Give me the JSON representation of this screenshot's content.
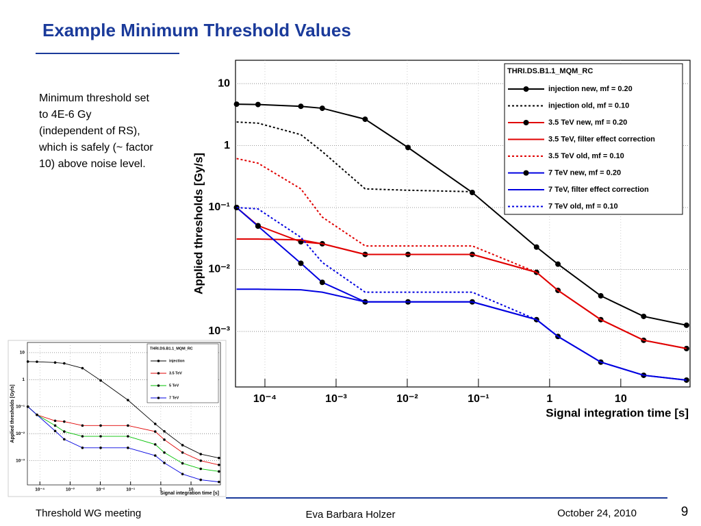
{
  "header": {
    "title": "Example Minimum Threshold Values"
  },
  "note": "Minimum threshold set to 4E-6 Gy (independent of RS), which is safely (~ factor 10) above noise level.",
  "footer": {
    "left": "Threshold WG meeting",
    "center": "Eva Barbara Holzer",
    "right": "October 24, 2010",
    "page": "9"
  },
  "chart_data": [
    {
      "type": "line",
      "legend_title": "THRI.DS.B1.1_MQM_RC",
      "xlabel": "Signal integration time [s]",
      "ylabel": "Applied thresholds [Gy/s]",
      "x": [
        4e-05,
        8e-05,
        0.00032,
        0.00064,
        0.00256,
        0.01024,
        0.08192,
        0.655,
        1.31,
        5.24,
        20.97,
        83.89
      ],
      "xlog": true,
      "ylog": true,
      "grid": true,
      "xlim": [
        3.86e-05,
        94
      ],
      "ylim": [
        0.000127,
        23.8
      ],
      "xticks": [
        {
          "value": 0.0001,
          "label": "10⁻⁴"
        },
        {
          "value": 0.001,
          "label": "10⁻³"
        },
        {
          "value": 0.01,
          "label": "10⁻²"
        },
        {
          "value": 0.1,
          "label": "10⁻¹"
        },
        1,
        10
      ],
      "yticks": [
        {
          "value": 0.001,
          "label": "10⁻³"
        },
        {
          "value": 0.01,
          "label": "10⁻²"
        },
        {
          "value": 0.1,
          "label": "10⁻¹"
        },
        1,
        10
      ],
      "series": [
        {
          "name": "injection new, mf = 0.20",
          "color": "#000000",
          "dashed": false,
          "markers": true,
          "values": [
            4.66,
            4.6,
            4.3,
            4.0,
            2.66,
            0.93,
            0.175,
            0.023,
            0.0122,
            0.00376,
            0.00175,
            0.00126
          ]
        },
        {
          "name": "injection old, mf = 0.10",
          "color": "#000000",
          "dashed": true,
          "markers": false,
          "values": [
            2.4,
            2.3,
            1.5,
            0.8,
            0.2,
            0.19,
            0.18,
            null,
            null,
            null,
            null,
            null
          ]
        },
        {
          "name": "3.5 TeV new, mf = 0.20",
          "color": "#e00000",
          "dashed": false,
          "markers": true,
          "values": [
            0.1,
            0.051,
            0.028,
            0.026,
            0.0175,
            0.0175,
            0.0175,
            0.009,
            0.0046,
            0.00155,
            0.00072,
            0.00053
          ]
        },
        {
          "name": "3.5 TeV, filter effect correction",
          "color": "#e00000",
          "dashed": false,
          "markers": false,
          "values": [
            0.031,
            0.031,
            0.03,
            0.026,
            0.0175,
            0.0175,
            0.0175,
            0.009,
            0.0046,
            0.00155,
            0.00072,
            0.00053
          ]
        },
        {
          "name": "3.5 TeV old, mf = 0.10",
          "color": "#e00000",
          "dashed": true,
          "markers": false,
          "values": [
            0.617,
            0.52,
            0.2,
            0.07,
            0.024,
            0.024,
            0.024,
            0.009,
            null,
            null,
            null,
            null
          ]
        },
        {
          "name": "7 TeV new, mf = 0.20",
          "color": "#0000e0",
          "dashed": false,
          "markers": true,
          "values": [
            0.1,
            0.05,
            0.0126,
            0.0062,
            0.003,
            0.003,
            0.003,
            0.00155,
            0.00083,
            0.00032,
            0.000196,
            0.000164
          ]
        },
        {
          "name": "7 TeV, filter effect correction",
          "color": "#0000e0",
          "dashed": false,
          "markers": false,
          "values": [
            0.0048,
            0.0048,
            0.0047,
            0.0043,
            0.003,
            0.003,
            0.003,
            0.00155,
            0.00083,
            0.00032,
            0.000196,
            0.000164
          ]
        },
        {
          "name": "7 TeV old, mf = 0.10",
          "color": "#0000e0",
          "dashed": true,
          "markers": false,
          "values": [
            0.1,
            0.095,
            0.033,
            0.013,
            0.0043,
            0.0043,
            0.0043,
            0.00155,
            null,
            null,
            null,
            null
          ]
        }
      ]
    },
    {
      "type": "line",
      "legend_title": "THRI.DS.B1.1_MQM_RC",
      "xlabel": "Signal integration time [s]",
      "ylabel": "Applied thresholds [Gy/s]",
      "x": [
        4e-05,
        8e-05,
        0.00032,
        0.00064,
        0.00256,
        0.01024,
        0.08192,
        0.655,
        1.31,
        5.24,
        20.97,
        83.89
      ],
      "xlog": true,
      "ylog": true,
      "grid": true,
      "xlim": [
        3.86e-05,
        94
      ],
      "ylim": [
        0.000127,
        23.8
      ],
      "xticks": [
        {
          "value": 0.0001,
          "label": "10⁻⁴"
        },
        {
          "value": 0.001,
          "label": "10⁻³"
        },
        {
          "value": 0.01,
          "label": "10⁻²"
        },
        {
          "value": 0.1,
          "label": "10⁻¹"
        },
        1,
        10
      ],
      "yticks": [
        {
          "value": 0.001,
          "label": "10⁻³"
        },
        {
          "value": 0.01,
          "label": "10⁻²"
        },
        {
          "value": 0.1,
          "label": "10⁻¹"
        },
        1,
        10
      ],
      "series": [
        {
          "name": "injection",
          "color": "#000000",
          "dashed": false,
          "markers": true,
          "values": [
            4.66,
            4.6,
            4.3,
            4.0,
            2.66,
            0.93,
            0.175,
            0.023,
            0.0122,
            0.00376,
            0.00175,
            0.00126
          ]
        },
        {
          "name": "3.5 TeV",
          "color": "#e00000",
          "dashed": false,
          "markers": true,
          "values": [
            0.1,
            0.05,
            0.03,
            0.028,
            0.02,
            0.02,
            0.02,
            0.012,
            0.006,
            0.002,
            0.001,
            0.0007
          ]
        },
        {
          "name": "5 TeV",
          "color": "#00c000",
          "dashed": false,
          "markers": true,
          "values": [
            0.1,
            0.05,
            0.02,
            0.012,
            0.008,
            0.008,
            0.008,
            0.004,
            0.002,
            0.0008,
            0.0005,
            0.0004
          ]
        },
        {
          "name": "7 TeV",
          "color": "#0000e0",
          "dashed": false,
          "markers": true,
          "values": [
            0.1,
            0.05,
            0.0126,
            0.0062,
            0.003,
            0.003,
            0.003,
            0.00155,
            0.00083,
            0.00032,
            0.000196,
            0.000164
          ]
        }
      ]
    }
  ]
}
